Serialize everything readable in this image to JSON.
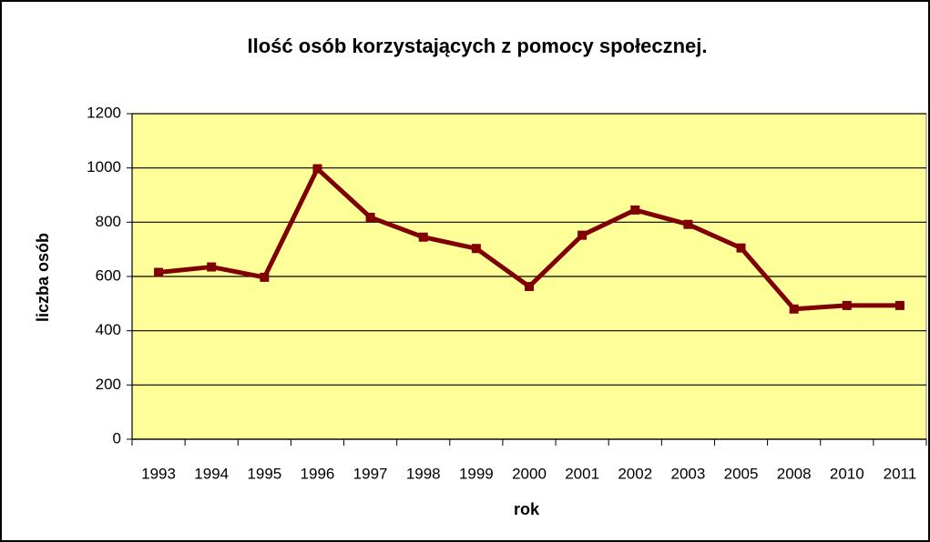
{
  "chart_data": {
    "type": "line",
    "title": "Ilość osób korzystających z pomocy społecznej.",
    "x_label": "rok",
    "y_label": "liczba osób",
    "categories": [
      "1993",
      "1994",
      "1995",
      "1996",
      "1997",
      "1998",
      "1999",
      "2000",
      "2001",
      "2002",
      "2003",
      "2005",
      "2008",
      "2010",
      "2011"
    ],
    "series": [
      {
        "name": "liczba osób",
        "color": "#800000",
        "values": [
          615,
          635,
          597,
          997,
          818,
          745,
          703,
          563,
          752,
          845,
          792,
          705,
          480,
          493,
          493
        ]
      }
    ],
    "ylim": [
      0,
      1200
    ],
    "yticks": [
      0,
      200,
      400,
      600,
      800,
      1000,
      1200
    ],
    "grid": true,
    "plot_background": "#ffff99"
  }
}
